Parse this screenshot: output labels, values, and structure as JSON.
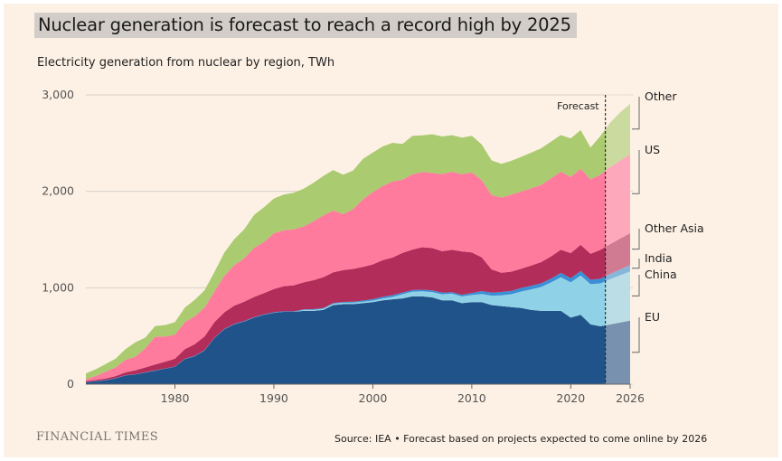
{
  "title": "Nuclear generation is forecast to reach a record high by 2025",
  "subtitle": "Electricity generation from nuclear by region, TWh",
  "brand": "FINANCIAL TIMES",
  "source": "Source: IEA • Forecast based on projects expected to come online by 2026",
  "forecast_label": "Forecast",
  "chart_data": {
    "type": "area",
    "stacked": true,
    "x": [
      1971,
      1972,
      1973,
      1974,
      1975,
      1976,
      1977,
      1978,
      1979,
      1980,
      1981,
      1982,
      1983,
      1984,
      1985,
      1986,
      1987,
      1988,
      1989,
      1990,
      1991,
      1992,
      1993,
      1994,
      1995,
      1996,
      1997,
      1998,
      1999,
      2000,
      2001,
      2002,
      2003,
      2004,
      2005,
      2006,
      2007,
      2008,
      2009,
      2010,
      2011,
      2012,
      2013,
      2014,
      2015,
      2016,
      2017,
      2018,
      2019,
      2020,
      2021,
      2022,
      2023,
      2024,
      2025,
      2026
    ],
    "series": [
      {
        "name": "EU",
        "color": "#20538a",
        "values": [
          20,
          30,
          40,
          60,
          90,
          100,
          120,
          140,
          160,
          180,
          260,
          290,
          350,
          480,
          570,
          620,
          650,
          690,
          720,
          740,
          750,
          750,
          760,
          760,
          770,
          820,
          830,
          830,
          840,
          850,
          870,
          880,
          890,
          910,
          910,
          900,
          870,
          870,
          840,
          850,
          850,
          820,
          810,
          800,
          790,
          770,
          760,
          760,
          760,
          690,
          720,
          620,
          600,
          620,
          640,
          660
        ]
      },
      {
        "name": "China",
        "color": "#8fd2e7",
        "values": [
          0,
          0,
          0,
          0,
          0,
          0,
          0,
          0,
          0,
          0,
          0,
          0,
          0,
          0,
          0,
          0,
          0,
          0,
          0,
          0,
          0,
          0,
          10,
          12,
          13,
          14,
          15,
          15,
          15,
          17,
          18,
          25,
          43,
          50,
          53,
          55,
          62,
          68,
          70,
          74,
          86,
          98,
          112,
          133,
          171,
          213,
          248,
          295,
          348,
          366,
          408,
          417,
          445,
          470,
          490,
          510
        ]
      },
      {
        "name": "India",
        "color": "#3a8fd6",
        "values": [
          2,
          3,
          3,
          3,
          3,
          3,
          3,
          3,
          3,
          3,
          4,
          4,
          4,
          4,
          5,
          5,
          5,
          5,
          5,
          6,
          6,
          6,
          6,
          6,
          7,
          7,
          8,
          10,
          12,
          15,
          18,
          18,
          18,
          16,
          17,
          17,
          17,
          15,
          17,
          22,
          30,
          32,
          34,
          34,
          37,
          38,
          38,
          39,
          46,
          43,
          47,
          46,
          48,
          54,
          60,
          66
        ]
      },
      {
        "name": "Other Asia",
        "color": "#b22d5a",
        "values": [
          10,
          12,
          15,
          20,
          30,
          40,
          50,
          60,
          70,
          80,
          100,
          120,
          140,
          160,
          170,
          190,
          200,
          210,
          220,
          240,
          260,
          270,
          280,
          300,
          320,
          320,
          330,
          340,
          350,
          360,
          380,
          390,
          410,
          420,
          440,
          440,
          430,
          440,
          450,
          420,
          350,
          240,
          200,
          200,
          200,
          210,
          220,
          230,
          240,
          260,
          270,
          270,
          300,
          310,
          320,
          330
        ]
      },
      {
        "name": "US",
        "color": "#ff7b9e",
        "values": [
          20,
          40,
          70,
          90,
          130,
          140,
          200,
          290,
          260,
          250,
          280,
          290,
          300,
          320,
          380,
          420,
          450,
          510,
          530,
          580,
          580,
          580,
          580,
          610,
          640,
          640,
          580,
          620,
          700,
          750,
          770,
          790,
          760,
          780,
          780,
          780,
          800,
          810,
          800,
          830,
          800,
          770,
          780,
          800,
          800,
          800,
          800,
          810,
          810,
          790,
          790,
          770,
          780,
          800,
          810,
          820
        ]
      },
      {
        "name": "Other",
        "color": "#aacb6f",
        "values": [
          60,
          70,
          80,
          90,
          110,
          150,
          110,
          110,
          120,
          130,
          150,
          170,
          180,
          200,
          240,
          270,
          300,
          340,
          360,
          360,
          370,
          380,
          390,
          400,
          410,
          420,
          410,
          400,
          420,
          410,
          410,
          400,
          370,
          400,
          380,
          400,
          390,
          380,
          380,
          380,
          370,
          360,
          350,
          350,
          360,
          370,
          380,
          380,
          380,
          400,
          400,
          330,
          400,
          460,
          500,
          520
        ]
      }
    ],
    "forecast_start": 2023.5,
    "xlim": [
      1971,
      2026
    ],
    "ylim": [
      0,
      3000
    ],
    "yticks": [
      0,
      1000,
      2000,
      3000
    ],
    "ytick_labels": [
      "0",
      "1,000",
      "2,000",
      "3,000"
    ],
    "xticks": [
      1980,
      1990,
      2000,
      2010,
      2020,
      2026
    ],
    "xtick_labels": [
      "1980",
      "1990",
      "2000",
      "2010",
      "2020",
      "2026"
    ],
    "legend_labels": [
      "EU",
      "China",
      "India",
      "Other Asia",
      "US",
      "Other"
    ],
    "legend": "right",
    "grid": true,
    "xlabel": "",
    "ylabel": ""
  }
}
